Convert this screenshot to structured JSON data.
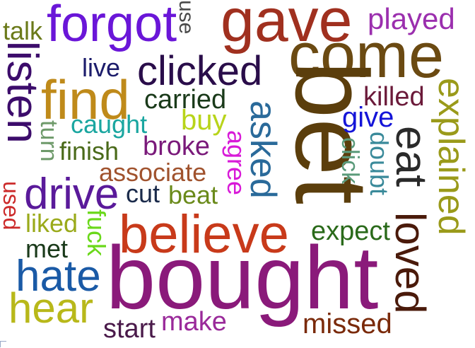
{
  "words": [
    {
      "text": "gave",
      "color": "#a0301f"
    },
    {
      "text": "forgot",
      "color": "#6a16d8"
    },
    {
      "text": "talk",
      "color": "#6b7a1a"
    },
    {
      "text": "use",
      "color": "#4b4b4b"
    },
    {
      "text": "played",
      "color": "#9b2fae"
    },
    {
      "text": "come",
      "color": "#6b4a12"
    },
    {
      "text": "listen",
      "color": "#3c0c6b"
    },
    {
      "text": "live",
      "color": "#1c1c6b"
    },
    {
      "text": "clicked",
      "color": "#2a0d4a"
    },
    {
      "text": "find",
      "color": "#bf8a1a"
    },
    {
      "text": "bet",
      "color": "#5b3e0c"
    },
    {
      "text": "killed",
      "color": "#6b1a3a"
    },
    {
      "text": "explained",
      "color": "#9a9a1a"
    },
    {
      "text": "carried",
      "color": "#1a3a1a"
    },
    {
      "text": "give",
      "color": "#1414d8"
    },
    {
      "text": "caught",
      "color": "#1aa6a0"
    },
    {
      "text": "buy",
      "color": "#b8d41a"
    },
    {
      "text": "asked",
      "color": "#2a6a9a"
    },
    {
      "text": "turn",
      "color": "#6e9a6a"
    },
    {
      "text": "finish",
      "color": "#4a6a1a"
    },
    {
      "text": "broke",
      "color": "#7a1a7a"
    },
    {
      "text": "agree",
      "color": "#d81ad8"
    },
    {
      "text": "doubt",
      "color": "#3a8a9a"
    },
    {
      "text": "eat",
      "color": "#2a2a2a"
    },
    {
      "text": "click",
      "color": "#5a9a7a"
    },
    {
      "text": "associate",
      "color": "#a0522d"
    },
    {
      "text": "used",
      "color": "#cc2a2a"
    },
    {
      "text": "drive",
      "color": "#5a1a9a"
    },
    {
      "text": "cut",
      "color": "#1a2a4a"
    },
    {
      "text": "beat",
      "color": "#6a8a1a"
    },
    {
      "text": "loved",
      "color": "#4a1a0a"
    },
    {
      "text": "liked",
      "color": "#9aaa1a"
    },
    {
      "text": "fuck",
      "color": "#6ad81a"
    },
    {
      "text": "believe",
      "color": "#c83a1a"
    },
    {
      "text": "expect",
      "color": "#2a6a1a"
    },
    {
      "text": "met",
      "color": "#1a3a1a"
    },
    {
      "text": "hate",
      "color": "#1a5aa6"
    },
    {
      "text": "bought",
      "color": "#8a1a7a"
    },
    {
      "text": "hear",
      "color": "#b8b81a"
    },
    {
      "text": "start",
      "color": "#4a1a4a"
    },
    {
      "text": "make",
      "color": "#9a2a9a"
    },
    {
      "text": "missed",
      "color": "#7a2a0a"
    }
  ]
}
